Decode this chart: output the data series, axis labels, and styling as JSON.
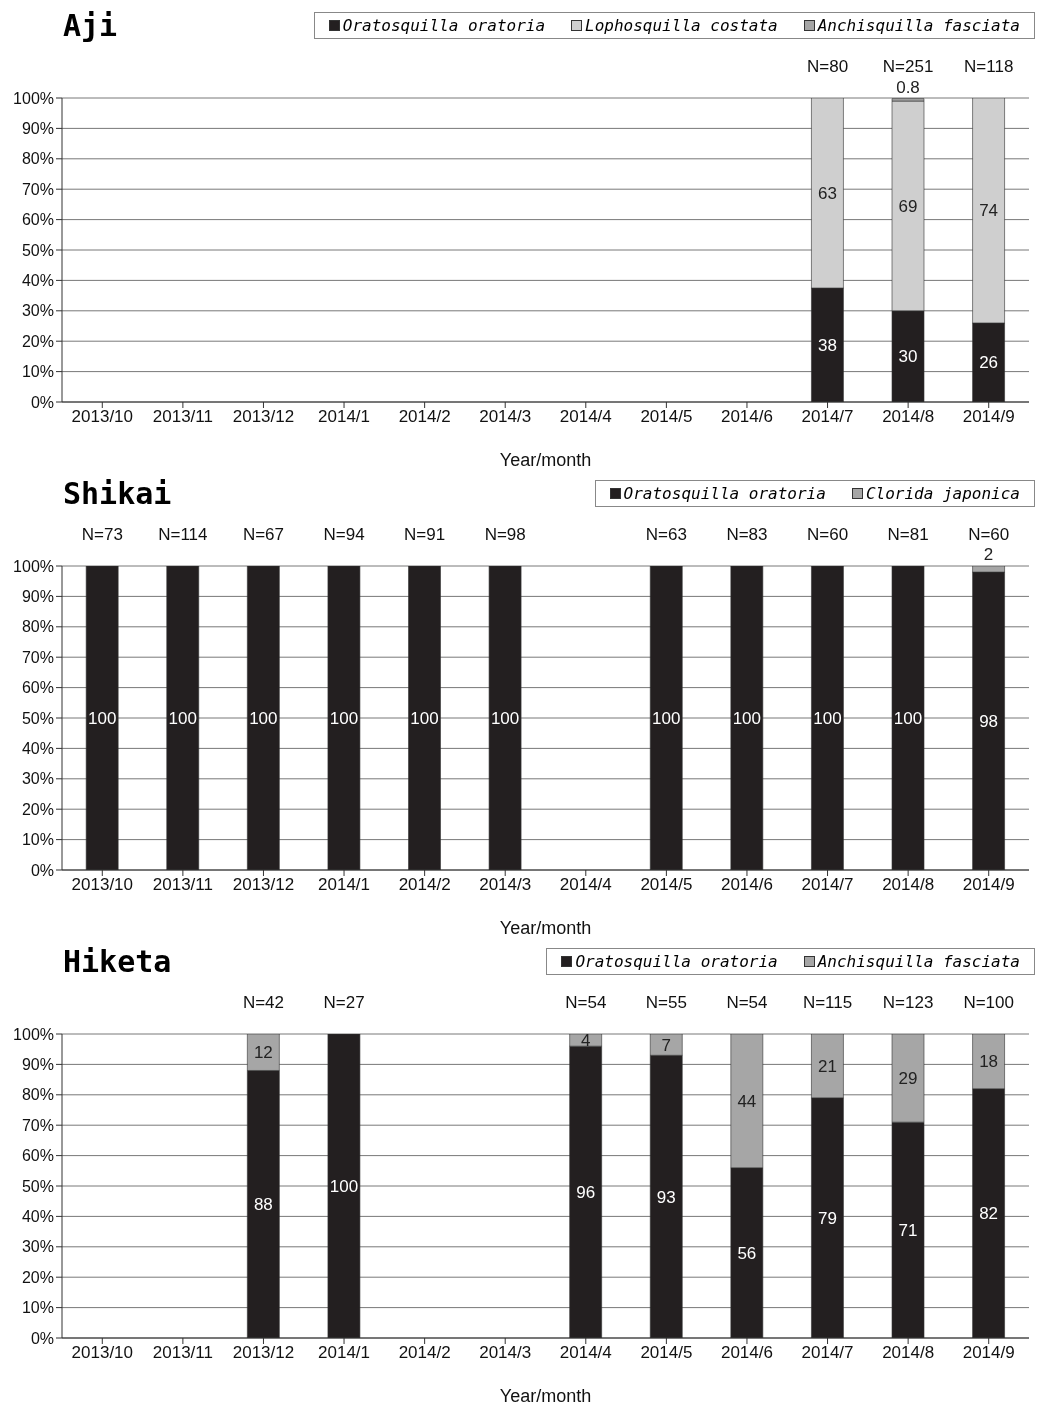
{
  "chart_data": [
    {
      "type": "bar",
      "title": "Aji",
      "xlabel": "Year/month",
      "stacked": true,
      "grid": "y",
      "legend": "top right",
      "categories": [
        "2013/10",
        "2013/11",
        "2013/12",
        "2014/1",
        "2014/2",
        "2014/3",
        "2014/4",
        "2014/5",
        "2014/6",
        "2014/7",
        "2014/8",
        "2014/9"
      ],
      "series": [
        {
          "name": "Oratosquilla oratoria",
          "color": "#231f20",
          "values": [
            null,
            null,
            null,
            null,
            null,
            null,
            null,
            null,
            null,
            37.5,
            30,
            26
          ],
          "value_labels": [
            null,
            null,
            null,
            null,
            null,
            null,
            null,
            null,
            null,
            "38",
            "30",
            "26"
          ]
        },
        {
          "name": "Lophosquilla costata",
          "color": "#cfcfcf",
          "values": [
            null,
            null,
            null,
            null,
            null,
            null,
            null,
            null,
            null,
            62.5,
            69,
            74
          ],
          "value_labels": [
            null,
            null,
            null,
            null,
            null,
            null,
            null,
            null,
            null,
            "63",
            "69",
            "74"
          ]
        },
        {
          "name": "Anchisquilla fasciata",
          "color": "#a6a6a6",
          "values": [
            null,
            null,
            null,
            null,
            null,
            null,
            null,
            null,
            null,
            null,
            0.8,
            null
          ],
          "value_labels": [
            null,
            null,
            null,
            null,
            null,
            null,
            null,
            null,
            null,
            null,
            "0.8",
            null
          ]
        }
      ],
      "ylim": [
        0,
        100
      ],
      "yticks": [
        {
          "value": 0,
          "label": "0%"
        },
        {
          "value": 10,
          "label": "10%"
        },
        {
          "value": 20,
          "label": "20%"
        },
        {
          "value": 30,
          "label": "30%"
        },
        {
          "value": 40,
          "label": "40%"
        },
        {
          "value": 50,
          "label": "50%"
        },
        {
          "value": 60,
          "label": "60%"
        },
        {
          "value": 70,
          "label": "70%"
        },
        {
          "value": 80,
          "label": "80%"
        },
        {
          "value": 90,
          "label": "90%"
        },
        {
          "value": 100,
          "label": "100%"
        }
      ],
      "annotations": [
        "N=80",
        "N=251",
        "N=118"
      ]
    },
    {
      "type": "bar",
      "title": "Shikai",
      "xlabel": "Year/month",
      "stacked": true,
      "data_labels": true,
      "grid": "y",
      "legend": "top right",
      "categories": [
        "2013/10",
        "2013/11",
        "2013/12",
        "2014/1",
        "2014/2",
        "2014/3",
        "2014/4",
        "2014/5",
        "2014/6",
        "2014/7",
        "2014/8",
        "2014/9"
      ],
      "series": [
        {
          "name": "Oratosquilla oratoria",
          "color": "#231f20",
          "values": [
            100,
            100,
            100,
            100,
            100,
            100,
            null,
            100,
            100,
            100,
            100,
            98
          ]
        },
        {
          "name": "Clorida japonica",
          "color": "#a6a6a6",
          "values": [
            null,
            null,
            null,
            null,
            null,
            null,
            null,
            null,
            null,
            null,
            null,
            2
          ]
        }
      ],
      "ylim": [
        0,
        100
      ],
      "yticks": [
        {
          "value": 0,
          "label": "0%"
        },
        {
          "value": 10,
          "label": "10%"
        },
        {
          "value": 20,
          "label": "20%"
        },
        {
          "value": 30,
          "label": "30%"
        },
        {
          "value": 40,
          "label": "40%"
        },
        {
          "value": 50,
          "label": "50%"
        },
        {
          "value": 60,
          "label": "60%"
        },
        {
          "value": 70,
          "label": "70%"
        },
        {
          "value": 80,
          "label": "80%"
        },
        {
          "value": 90,
          "label": "90%"
        },
        {
          "value": 100,
          "label": "100%"
        }
      ],
      "annotations": [
        "N=73",
        "N=114",
        "N=67",
        "N=94",
        "N=91",
        "N=98",
        "N=63",
        "N=83",
        "N=60",
        "N=81",
        "N=60"
      ]
    },
    {
      "type": "bar",
      "title": "Hiketa",
      "xlabel": "Year/month",
      "stacked": true,
      "data_labels": true,
      "grid": "y",
      "legend": "top right",
      "categories": [
        "2013/10",
        "2013/11",
        "2013/12",
        "2014/1",
        "2014/2",
        "2014/3",
        "2014/4",
        "2014/5",
        "2014/6",
        "2014/7",
        "2014/8",
        "2014/9"
      ],
      "series": [
        {
          "name": "Oratosquilla oratoria",
          "color": "#231f20",
          "values": [
            null,
            null,
            88,
            100,
            null,
            null,
            96,
            93,
            56,
            79,
            71,
            82
          ]
        },
        {
          "name": "Anchisquilla fasciata",
          "color": "#a6a6a6",
          "values": [
            null,
            null,
            12,
            null,
            null,
            null,
            4,
            7,
            44,
            21,
            29,
            18
          ]
        }
      ],
      "ylim": [
        0,
        100
      ],
      "yticks": [
        {
          "value": 0,
          "label": "0%"
        },
        {
          "value": 10,
          "label": "10%"
        },
        {
          "value": 20,
          "label": "20%"
        },
        {
          "value": 30,
          "label": "30%"
        },
        {
          "value": 40,
          "label": "40%"
        },
        {
          "value": 50,
          "label": "50%"
        },
        {
          "value": 60,
          "label": "60%"
        },
        {
          "value": 70,
          "label": "70%"
        },
        {
          "value": 80,
          "label": "80%"
        },
        {
          "value": 90,
          "label": "90%"
        },
        {
          "value": 100,
          "label": "100%"
        }
      ],
      "annotations": [
        "N=42",
        "N=27",
        "N=54",
        "N=55",
        "N=54",
        "N=115",
        "N=123",
        "N=100"
      ]
    }
  ]
}
